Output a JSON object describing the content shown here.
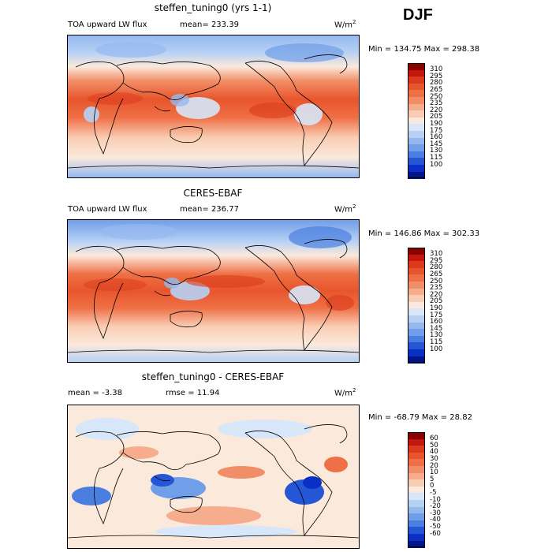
{
  "season": "DJF",
  "panels": [
    {
      "title": "steffen_tuning0 (yrs 1-1)",
      "variable": "TOA upward LW flux",
      "mean_label": "mean=",
      "mean_value": "233.39",
      "units": "W/m",
      "units_exp": "2",
      "minmax": "Min = 134.75 Max = 298.38",
      "kind": "model"
    },
    {
      "title": "CERES-EBAF",
      "variable": "TOA upward LW flux",
      "mean_label": "mean=",
      "mean_value": "236.77",
      "units": "W/m",
      "units_exp": "2",
      "minmax": "Min = 146.86 Max = 302.33",
      "kind": "obs"
    },
    {
      "title": "steffen_tuning0 - CERES-EBAF",
      "mean_label": "mean =",
      "mean_value": "-3.38",
      "rmse_label": "rmse =",
      "rmse_value": "11.94",
      "units": "W/m",
      "units_exp": "2",
      "minmax": "Min = -68.79 Max =  28.82",
      "kind": "diff"
    }
  ],
  "colorbars": {
    "flux": {
      "ticks": [
        "310",
        "295",
        "280",
        "265",
        "250",
        "235",
        "220",
        "205",
        "190",
        "175",
        "160",
        "145",
        "130",
        "115",
        "100"
      ],
      "colors": [
        "#8c0000",
        "#c2180c",
        "#dc3a1c",
        "#e8552c",
        "#ef7046",
        "#f28e67",
        "#f6ad8d",
        "#f9cdb3",
        "#fbe9dc",
        "#d7e6f8",
        "#b7d1f4",
        "#95b9ef",
        "#719ee8",
        "#4a7fdf",
        "#2556d6",
        "#0a2fc4",
        "#00158a"
      ]
    },
    "diff": {
      "ticks": [
        "60",
        "50",
        "40",
        "30",
        "20",
        "10",
        "5",
        "0",
        "-5",
        "-10",
        "-20",
        "-30",
        "-40",
        "-50",
        "-60"
      ],
      "colors": [
        "#8c0000",
        "#c2180c",
        "#dc3a1c",
        "#e8552c",
        "#ef7046",
        "#f28e67",
        "#f6ad8d",
        "#f9cdb3",
        "#fbe9dc",
        "#d7e6f8",
        "#b7d1f4",
        "#95b9ef",
        "#719ee8",
        "#4a7fdf",
        "#2556d6",
        "#0a2fc4",
        "#00158a"
      ]
    }
  }
}
